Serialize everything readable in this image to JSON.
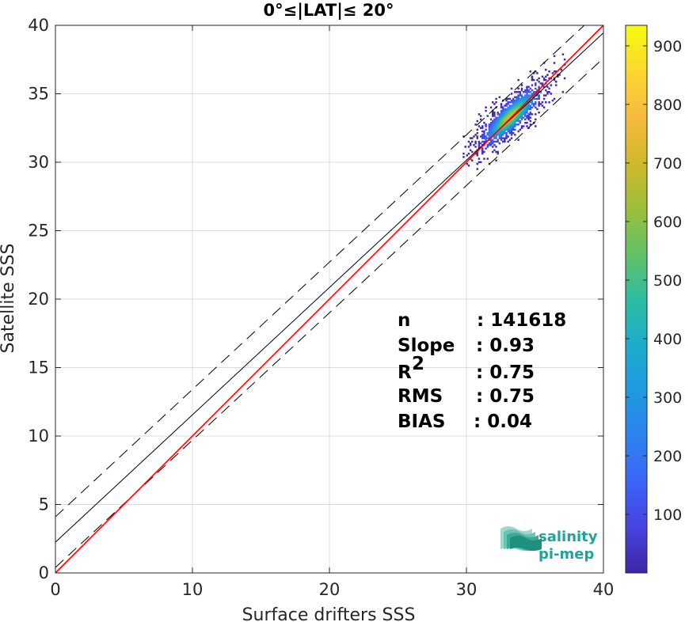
{
  "chart_data": {
    "type": "heatmap",
    "title": "0°≤|LAT|≤ 20°",
    "xlabel": "Surface drifters SSS",
    "ylabel": "Satellite SSS",
    "xlim": [
      0,
      40
    ],
    "ylim": [
      0,
      40
    ],
    "xticks": [
      "0",
      "10",
      "20",
      "30",
      "40"
    ],
    "yticks": [
      "0",
      "5",
      "10",
      "15",
      "20",
      "25",
      "30",
      "35",
      "40"
    ],
    "colorbar": {
      "min": 0,
      "max": 935,
      "ticks": [
        "100",
        "200",
        "300",
        "400",
        "500",
        "600",
        "700",
        "800",
        "900"
      ],
      "colormap": [
        "#3e26a8",
        "#4743e1",
        "#3c64f8",
        "#2d83f0",
        "#1f99e0",
        "#1caccc",
        "#2ebc9f",
        "#63c166",
        "#9dbf39",
        "#d2b72b",
        "#f8ba3d",
        "#fbd72f",
        "#f9fb0e"
      ]
    },
    "density_cluster": {
      "center_x": 33.2,
      "center_y": 33.3,
      "peak_count": 935,
      "x_range": [
        29.6,
        37.1
      ],
      "y_range": [
        28.2,
        38.8
      ]
    },
    "lines": {
      "one_to_one": {
        "color": "#ff0000",
        "intercept": 0,
        "slope": 1
      },
      "regression": {
        "color": "#000000",
        "intercept": 2.25,
        "slope": 0.93
      },
      "regression_upper": {
        "color": "#000000",
        "style": "dashed",
        "intercept": 4.1,
        "slope": 0.93
      },
      "regression_lower": {
        "color": "#000000",
        "style": "dashed",
        "intercept": 0.4,
        "slope": 0.93
      }
    },
    "stats": [
      {
        "key": "n",
        "value": ": 141618"
      },
      {
        "key": "Slope",
        "value": ": 0.93"
      },
      {
        "key": "R",
        "sup": "2",
        "value": ": 0.75"
      },
      {
        "key": "RMS",
        "value": ": 0.75"
      },
      {
        "key": "BIAS",
        "value": ": 0.04"
      }
    ]
  },
  "logo": {
    "line1": "salinity",
    "line2": "pi-mep"
  }
}
